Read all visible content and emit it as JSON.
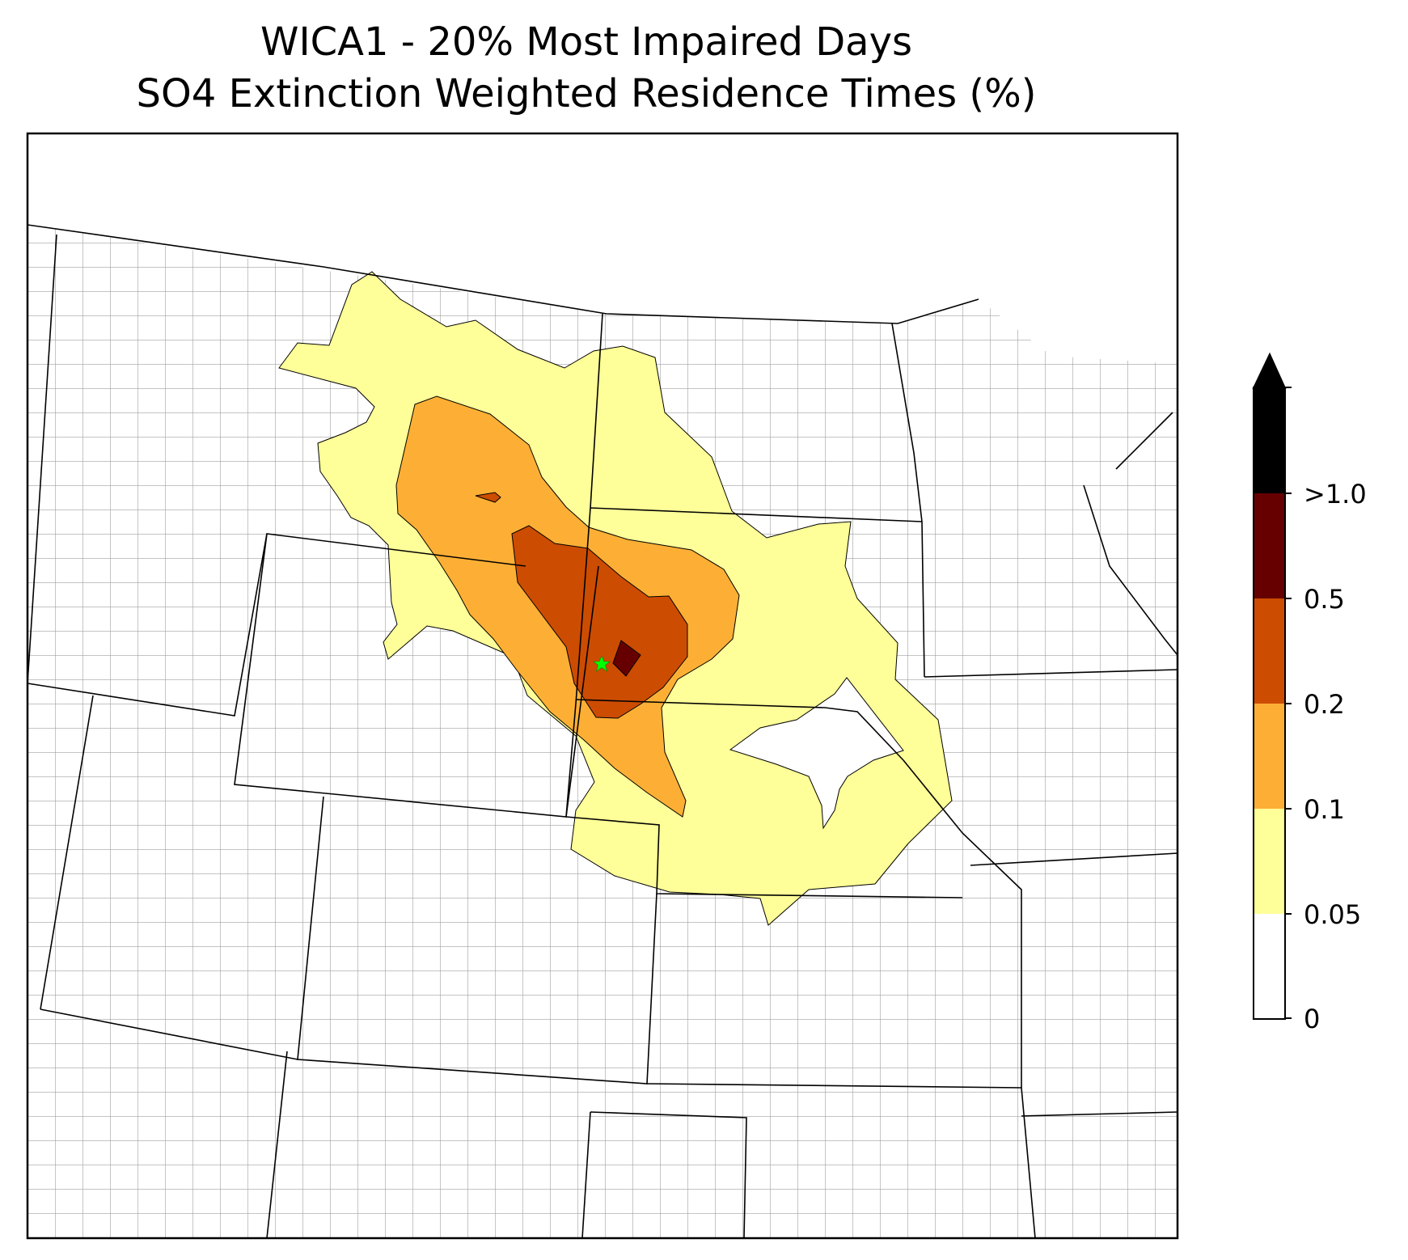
{
  "title_line1": "WICA1 - 20% Most Impaired Days",
  "title_line2": "SO4 Extinction Weighted Residence Times (%)",
  "site_marker": {
    "name": "WICA1",
    "symbol": "star",
    "color": "#00ff00"
  },
  "colorbar": {
    "extend": "max",
    "ticks": [
      "0",
      "0.05",
      "0.1",
      "0.2",
      "0.5",
      ">1.0"
    ],
    "bands": [
      {
        "range": "0-0.05",
        "color": "#ffffff"
      },
      {
        "range": "0.05-0.1",
        "color": "#ffff99"
      },
      {
        "range": "0.1-0.2",
        "color": "#fdaf35"
      },
      {
        "range": "0.2-0.5",
        "color": "#cc4c02"
      },
      {
        "range": "0.5-1.0",
        "color": "#660000"
      },
      {
        "range": ">1.0",
        "color": "#000000"
      }
    ]
  },
  "colors": {
    "state_border": "#000000",
    "county_border": "#a0a0a0"
  }
}
